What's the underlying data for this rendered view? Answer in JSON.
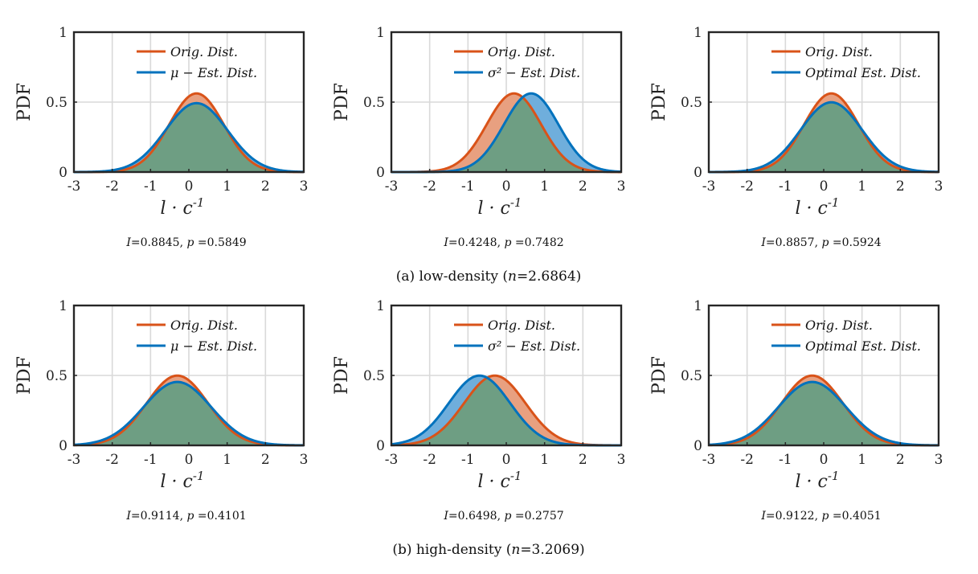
{
  "colors": {
    "orig": "#D95319",
    "est": "#0072BD",
    "orig_fill": "#E8A080",
    "est_fill": "#6FAEDC",
    "overlap_fill": "#6E9E83",
    "grid": "#d9d9d9",
    "axis": "#262626"
  },
  "chart_data": [
    {
      "type": "area",
      "panel": "a1",
      "xlabel": "l · c^-1",
      "ylabel": "PDF",
      "xlim": [
        -3,
        3
      ],
      "ylim": [
        0,
        1
      ],
      "xticks": [
        -3,
        -2,
        -1,
        0,
        1,
        2,
        3
      ],
      "yticks": [
        0,
        0.5,
        1
      ],
      "xtick_labels": [
        "-3",
        "-2",
        "-1",
        "0",
        "1",
        "2",
        "3"
      ],
      "ytick_labels": [
        "0",
        "0.5",
        "1"
      ],
      "legend": [
        "Orig. Dist.",
        "μ − Est. Dist."
      ],
      "series": [
        {
          "name": "Orig. Dist.",
          "mean": 0.2,
          "sd": 0.71
        },
        {
          "name": "μ − Est. Dist.",
          "mean": 0.2,
          "sd": 0.81
        }
      ],
      "stat_I": "0.8845",
      "stat_p": "0.5849"
    },
    {
      "type": "area",
      "panel": "a2",
      "xlabel": "l · c^-1",
      "ylabel": "PDF",
      "xlim": [
        -3,
        3
      ],
      "ylim": [
        0,
        1
      ],
      "xticks": [
        -3,
        -2,
        -1,
        0,
        1,
        2,
        3
      ],
      "yticks": [
        0,
        0.5,
        1
      ],
      "xtick_labels": [
        "-3",
        "-2",
        "-1",
        "0",
        "1",
        "2",
        "3"
      ],
      "ytick_labels": [
        "0",
        "0.5",
        "1"
      ],
      "legend": [
        "Orig. Dist.",
        "σ² − Est. Dist."
      ],
      "series": [
        {
          "name": "Orig. Dist.",
          "mean": 0.2,
          "sd": 0.71
        },
        {
          "name": "σ² − Est. Dist.",
          "mean": 0.65,
          "sd": 0.71
        }
      ],
      "stat_I": "0.4248",
      "stat_p": "0.7482"
    },
    {
      "type": "area",
      "panel": "a3",
      "xlabel": "l · c^-1",
      "ylabel": "PDF",
      "xlim": [
        -3,
        3
      ],
      "ylim": [
        0,
        1
      ],
      "xticks": [
        -3,
        -2,
        -1,
        0,
        1,
        2,
        3
      ],
      "yticks": [
        0,
        0.5,
        1
      ],
      "xtick_labels": [
        "-3",
        "-2",
        "-1",
        "0",
        "1",
        "2",
        "3"
      ],
      "ytick_labels": [
        "0",
        "0.5",
        "1"
      ],
      "legend": [
        "Orig. Dist.",
        "Optimal Est. Dist."
      ],
      "series": [
        {
          "name": "Orig. Dist.",
          "mean": 0.2,
          "sd": 0.71
        },
        {
          "name": "Optimal Est. Dist.",
          "mean": 0.2,
          "sd": 0.8
        }
      ],
      "stat_I": "0.8857",
      "stat_p": "0.5924"
    },
    {
      "type": "area",
      "panel": "b1",
      "xlabel": "l · c^-1",
      "ylabel": "PDF",
      "xlim": [
        -3,
        3
      ],
      "ylim": [
        0,
        1
      ],
      "xticks": [
        -3,
        -2,
        -1,
        0,
        1,
        2,
        3
      ],
      "yticks": [
        0,
        0.5,
        1
      ],
      "xtick_labels": [
        "-3",
        "-2",
        "-1",
        "0",
        "1",
        "2",
        "3"
      ],
      "ytick_labels": [
        "0",
        "0.5",
        "1"
      ],
      "legend": [
        "Orig. Dist.",
        "μ − Est. Dist."
      ],
      "series": [
        {
          "name": "Orig. Dist.",
          "mean": -0.3,
          "sd": 0.8
        },
        {
          "name": "μ − Est. Dist.",
          "mean": -0.3,
          "sd": 0.88
        }
      ],
      "stat_I": "0.9114",
      "stat_p": "0.4101"
    },
    {
      "type": "area",
      "panel": "b2",
      "xlabel": "l · c^-1",
      "ylabel": "PDF",
      "xlim": [
        -3,
        3
      ],
      "ylim": [
        0,
        1
      ],
      "xticks": [
        -3,
        -2,
        -1,
        0,
        1,
        2,
        3
      ],
      "yticks": [
        0,
        0.5,
        1
      ],
      "xtick_labels": [
        "-3",
        "-2",
        "-1",
        "0",
        "1",
        "2",
        "3"
      ],
      "ytick_labels": [
        "0",
        "0.5",
        "1"
      ],
      "legend": [
        "Orig. Dist.",
        "σ² − Est. Dist."
      ],
      "series": [
        {
          "name": "Orig. Dist.",
          "mean": -0.3,
          "sd": 0.8
        },
        {
          "name": "σ² − Est. Dist.",
          "mean": -0.7,
          "sd": 0.8
        }
      ],
      "stat_I": "0.6498",
      "stat_p": "0.2757"
    },
    {
      "type": "area",
      "panel": "b3",
      "xlabel": "l · c^-1",
      "ylabel": "PDF",
      "xlim": [
        -3,
        3
      ],
      "ylim": [
        0,
        1
      ],
      "xticks": [
        -3,
        -2,
        -1,
        0,
        1,
        2,
        3
      ],
      "yticks": [
        0,
        0.5,
        1
      ],
      "xtick_labels": [
        "-3",
        "-2",
        "-1",
        "0",
        "1",
        "2",
        "3"
      ],
      "ytick_labels": [
        "0",
        "0.5",
        "1"
      ],
      "legend": [
        "Orig. Dist.",
        "Optimal Est. Dist."
      ],
      "series": [
        {
          "name": "Orig. Dist.",
          "mean": -0.3,
          "sd": 0.8
        },
        {
          "name": "Optimal Est. Dist.",
          "mean": -0.3,
          "sd": 0.88
        }
      ],
      "stat_I": "0.9122",
      "stat_p": "0.4051"
    }
  ],
  "captions": {
    "a": {
      "prefix": "(a) low-density (",
      "var": "n",
      "value": "=2.6864)"
    },
    "b": {
      "prefix": "(b) high-density (",
      "var": "n",
      "value": "=3.2069)"
    }
  },
  "stat_labels": {
    "I": "I",
    "p": "p"
  }
}
